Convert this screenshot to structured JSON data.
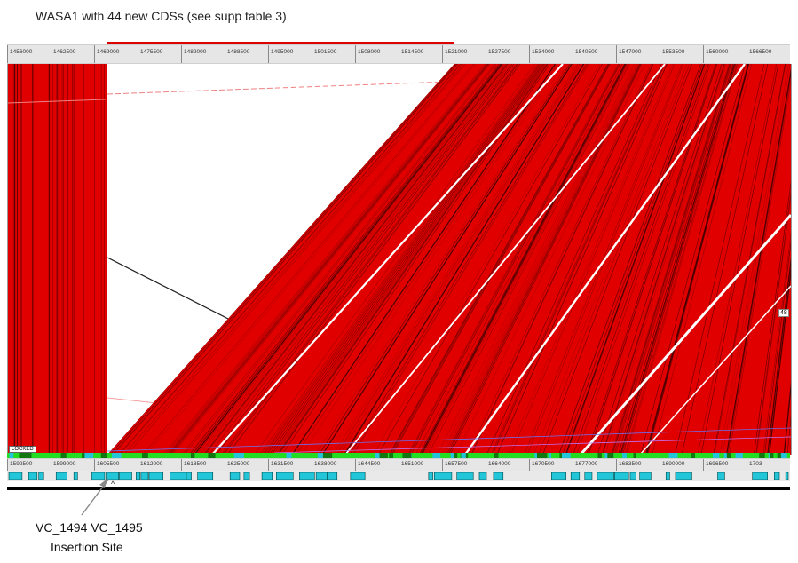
{
  "title": "WASA1 with 44 new CDSs (see supp table 3)",
  "top_ruler": [
    "1456000",
    "1462500",
    "1469000",
    "1475500",
    "1482000",
    "1488500",
    "1495000",
    "1501500",
    "1508000",
    "1514500",
    "1521000",
    "1527500",
    "1534000",
    "1540500",
    "1547000",
    "1553500",
    "1560000",
    "1566500"
  ],
  "bottom_ruler": [
    "1592500",
    "1599000",
    "1605500",
    "1612000",
    "1618500",
    "1625000",
    "1631500",
    "1638000",
    "1644500",
    "1651000",
    "1657500",
    "1664000",
    "1670500",
    "1677000",
    "1683500",
    "1690000",
    "1696500",
    "1703"
  ],
  "locked_tag": "LOCKED",
  "side_tag": "48",
  "annotation": {
    "genes": "VC_1494  VC_1495",
    "label": "Insertion Site"
  },
  "colors": {
    "match": "#e00000",
    "match_dark": "#8a0000",
    "feature_green": "#22dd22",
    "feature_cyan": "#22c6d8",
    "ruler": "#e6e6e6"
  }
}
